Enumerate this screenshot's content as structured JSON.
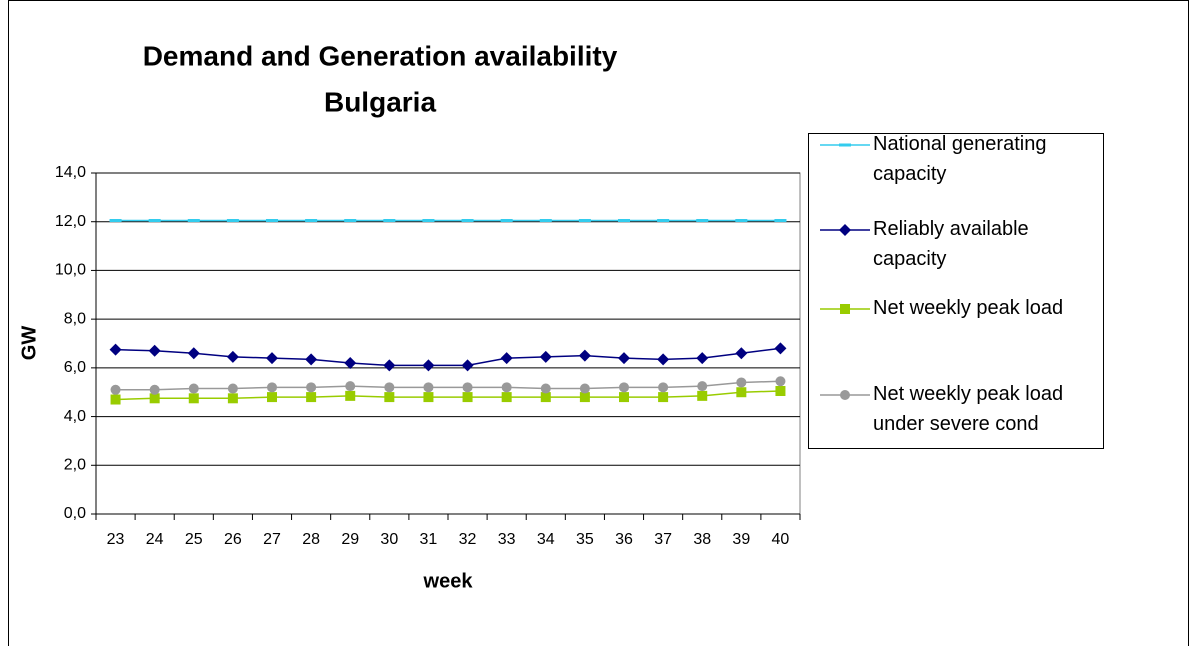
{
  "chart_data": {
    "type": "line",
    "title": "Demand and Generation availability",
    "subtitle": "Bulgaria",
    "x_label": "week",
    "y_label": "GW",
    "categories": [
      "23",
      "24",
      "25",
      "26",
      "27",
      "28",
      "29",
      "30",
      "31",
      "32",
      "33",
      "34",
      "35",
      "36",
      "37",
      "38",
      "39",
      "40"
    ],
    "ylim": [
      0,
      14
    ],
    "yticks": [
      {
        "value": 0,
        "label": "0,0"
      },
      {
        "value": 2,
        "label": "2,0"
      },
      {
        "value": 4,
        "label": "4,0"
      },
      {
        "value": 6,
        "label": "6,0"
      },
      {
        "value": 8,
        "label": "8,0"
      },
      {
        "value": 10,
        "label": "10,0"
      },
      {
        "value": 12,
        "label": "12,0"
      },
      {
        "value": 14,
        "label": "14,0"
      }
    ],
    "grid": true,
    "legend": "right",
    "series": [
      {
        "name": "National generating capacity",
        "color": "#33ccee",
        "marker": "dash",
        "values": [
          12.05,
          12.05,
          12.05,
          12.05,
          12.05,
          12.05,
          12.05,
          12.05,
          12.05,
          12.05,
          12.05,
          12.05,
          12.05,
          12.05,
          12.05,
          12.05,
          12.05,
          12.05
        ]
      },
      {
        "name": "Reliably available capacity",
        "color": "#000080",
        "marker": "diamond",
        "values": [
          6.75,
          6.7,
          6.6,
          6.45,
          6.4,
          6.35,
          6.2,
          6.1,
          6.1,
          6.1,
          6.4,
          6.45,
          6.5,
          6.4,
          6.35,
          6.4,
          6.6,
          6.8
        ]
      },
      {
        "name": "Net weekly peak load",
        "color": "#99cc00",
        "marker": "square",
        "values": [
          4.7,
          4.75,
          4.75,
          4.75,
          4.8,
          4.8,
          4.85,
          4.8,
          4.8,
          4.8,
          4.8,
          4.8,
          4.8,
          4.8,
          4.8,
          4.85,
          5.0,
          5.05
        ]
      },
      {
        "name": "Net weekly peak load under severe cond",
        "color": "#999999",
        "marker": "circle",
        "values": [
          5.1,
          5.1,
          5.15,
          5.15,
          5.2,
          5.2,
          5.25,
          5.2,
          5.2,
          5.2,
          5.2,
          5.15,
          5.15,
          5.2,
          5.2,
          5.25,
          5.4,
          5.45
        ]
      }
    ]
  }
}
